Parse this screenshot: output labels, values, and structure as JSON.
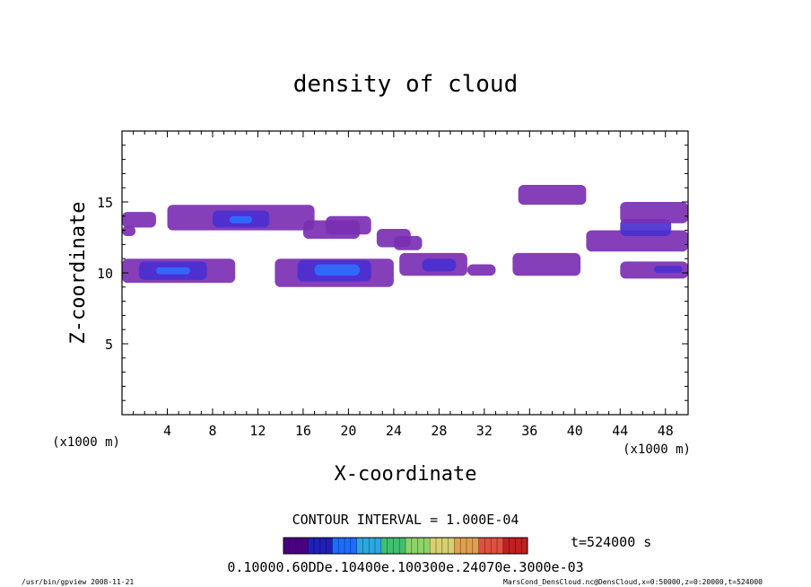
{
  "chart_data": {
    "type": "heatmap",
    "title": "density of cloud",
    "xlabel": "X-coordinate",
    "ylabel": "Z-coordinate",
    "x_unit_left": "(x1000 m)",
    "x_unit_right": "(x1000 m)",
    "xlim": [
      0,
      50
    ],
    "ylim": [
      0,
      20
    ],
    "xticks": [
      4,
      8,
      12,
      16,
      20,
      24,
      28,
      32,
      36,
      40,
      44,
      48
    ],
    "yticks": [
      5,
      10,
      15
    ],
    "contour_interval_label": "CONTOUR INTERVAL = 1.000E-04",
    "time_label": "t=524000 s",
    "colorbar_label_text": "0.10000.60DDe.10400e.100300e.24070e.3000e-03",
    "colorbar_colors": [
      "#4b0082",
      "#1f1fb8",
      "#1e6cff",
      "#2aa8e0",
      "#3fc070",
      "#8ed36a",
      "#d8d070",
      "#e0a050",
      "#e05040",
      "#c02020"
    ],
    "cloud_cells": [
      {
        "x": [
          0,
          3
        ],
        "z": [
          13.2,
          14.3
        ],
        "level": 1
      },
      {
        "x": [
          0,
          1.2
        ],
        "z": [
          12.6,
          13.3
        ],
        "level": 1
      },
      {
        "x": [
          4,
          17
        ],
        "z": [
          13.0,
          14.8
        ],
        "level": 1
      },
      {
        "x": [
          8,
          13
        ],
        "z": [
          13.2,
          14.4
        ],
        "level": 2
      },
      {
        "x": [
          9.5,
          11.5
        ],
        "z": [
          13.5,
          14.0
        ],
        "level": 3
      },
      {
        "x": [
          16,
          21
        ],
        "z": [
          12.4,
          13.7
        ],
        "level": 1
      },
      {
        "x": [
          18,
          22
        ],
        "z": [
          12.7,
          14.0
        ],
        "level": 1
      },
      {
        "x": [
          22.5,
          25.5
        ],
        "z": [
          11.8,
          13.1
        ],
        "level": 1
      },
      {
        "x": [
          24,
          26.5
        ],
        "z": [
          11.6,
          12.6
        ],
        "level": 1
      },
      {
        "x": [
          0,
          10
        ],
        "z": [
          9.3,
          11.0
        ],
        "level": 1
      },
      {
        "x": [
          1.5,
          7.5
        ],
        "z": [
          9.5,
          10.8
        ],
        "level": 2
      },
      {
        "x": [
          3,
          6
        ],
        "z": [
          9.9,
          10.4
        ],
        "level": 3
      },
      {
        "x": [
          13.5,
          24
        ],
        "z": [
          9.0,
          11.0
        ],
        "level": 1
      },
      {
        "x": [
          15.5,
          22
        ],
        "z": [
          9.4,
          10.9
        ],
        "level": 2
      },
      {
        "x": [
          17,
          21
        ],
        "z": [
          9.8,
          10.6
        ],
        "level": 3
      },
      {
        "x": [
          24.5,
          30.5
        ],
        "z": [
          9.8,
          11.4
        ],
        "level": 1
      },
      {
        "x": [
          26.5,
          29.5
        ],
        "z": [
          10.1,
          11.0
        ],
        "level": 2
      },
      {
        "x": [
          30.5,
          33
        ],
        "z": [
          9.8,
          10.6
        ],
        "level": 1
      },
      {
        "x": [
          34.5,
          40.5
        ],
        "z": [
          9.8,
          11.4
        ],
        "level": 1
      },
      {
        "x": [
          35,
          41
        ],
        "z": [
          14.8,
          16.2
        ],
        "level": 1
      },
      {
        "x": [
          41,
          50
        ],
        "z": [
          11.5,
          13.0
        ],
        "level": 1
      },
      {
        "x": [
          44,
          48.5
        ],
        "z": [
          12.6,
          13.8
        ],
        "level": 2
      },
      {
        "x": [
          44,
          50
        ],
        "z": [
          13.5,
          15.0
        ],
        "level": 1
      },
      {
        "x": [
          44,
          50
        ],
        "z": [
          9.6,
          10.8
        ],
        "level": 1
      },
      {
        "x": [
          47,
          49.5
        ],
        "z": [
          10.0,
          10.5
        ],
        "level": 2
      }
    ]
  },
  "footer": {
    "left": "/usr/bin/gpview  2008-11-21",
    "right": "MarsCond_DensCloud.nc@DensCloud,x=0:50000,z=0:20000,t=524000"
  }
}
